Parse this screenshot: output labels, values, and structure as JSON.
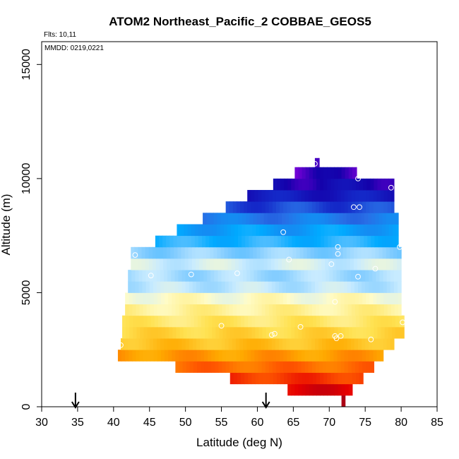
{
  "chart_data": {
    "type": "heatmap",
    "title": "ATOM2 Northeast_Pacific_2 COBBAE_GEOS5",
    "annotations": {
      "flights": "Flts: 10,11",
      "dates": "MMDD: 0219,0221"
    },
    "xlabel": "Latitude (deg N)",
    "ylabel": "Altitude (m)",
    "xlim": [
      30,
      85
    ],
    "ylim": [
      0,
      16000
    ],
    "x_ticks": [
      30,
      35,
      40,
      45,
      50,
      55,
      60,
      65,
      70,
      75,
      80,
      85
    ],
    "y_ticks": [
      0,
      5000,
      10000,
      15000
    ],
    "grid": false,
    "legend": "none",
    "arrow_markers_lat": [
      34.7,
      61.2
    ],
    "curtain_rows": [
      {
        "alt_bottom": 0,
        "alt_top": 500,
        "lat_start": 71.7,
        "lat_end": 72.2,
        "level": 0.97
      },
      {
        "alt_bottom": 500,
        "alt_top": 1000,
        "lat_start": 64.2,
        "lat_end": 73.2,
        "level": 0.93
      },
      {
        "alt_bottom": 1000,
        "alt_top": 1500,
        "lat_start": 56.2,
        "lat_end": 74.7,
        "level": 0.86
      },
      {
        "alt_bottom": 1500,
        "alt_top": 2000,
        "lat_start": 48.6,
        "lat_end": 76.2,
        "level": 0.8
      },
      {
        "alt_bottom": 2000,
        "alt_top": 2500,
        "lat_start": 40.6,
        "lat_end": 77.5,
        "level": 0.74
      },
      {
        "alt_bottom": 2500,
        "alt_top": 3000,
        "lat_start": 41.0,
        "lat_end": 79.0,
        "level": 0.68
      },
      {
        "alt_bottom": 3000,
        "alt_top": 3500,
        "lat_start": 41.2,
        "lat_end": 80.4,
        "level": 0.64
      },
      {
        "alt_bottom": 3500,
        "alt_top": 4000,
        "lat_start": 41.2,
        "lat_end": 80.4,
        "level": 0.6
      },
      {
        "alt_bottom": 4000,
        "alt_top": 4500,
        "lat_start": 41.6,
        "lat_end": 80.0,
        "level": 0.56
      },
      {
        "alt_bottom": 4500,
        "alt_top": 5000,
        "lat_start": 41.6,
        "lat_end": 80.0,
        "level": 0.52
      },
      {
        "alt_bottom": 5000,
        "alt_top": 5500,
        "lat_start": 42.0,
        "lat_end": 80.0,
        "level": 0.44
      },
      {
        "alt_bottom": 5500,
        "alt_top": 6000,
        "lat_start": 42.0,
        "lat_end": 80.0,
        "level": 0.42
      },
      {
        "alt_bottom": 6000,
        "alt_top": 6500,
        "lat_start": 42.4,
        "lat_end": 80.0,
        "level": 0.46
      },
      {
        "alt_bottom": 6500,
        "alt_top": 7000,
        "lat_start": 42.4,
        "lat_end": 80.0,
        "level": 0.4
      },
      {
        "alt_bottom": 7000,
        "alt_top": 7500,
        "lat_start": 45.8,
        "lat_end": 79.6,
        "level": 0.32
      },
      {
        "alt_bottom": 7500,
        "alt_top": 8000,
        "lat_start": 48.8,
        "lat_end": 79.6,
        "level": 0.28
      },
      {
        "alt_bottom": 8000,
        "alt_top": 8500,
        "lat_start": 52.4,
        "lat_end": 79.6,
        "level": 0.22
      },
      {
        "alt_bottom": 8500,
        "alt_top": 9000,
        "lat_start": 55.6,
        "lat_end": 79.0,
        "level": 0.16
      },
      {
        "alt_bottom": 9000,
        "alt_top": 9500,
        "lat_start": 58.6,
        "lat_end": 79.0,
        "level": 0.1
      },
      {
        "alt_bottom": 9500,
        "alt_top": 10000,
        "lat_start": 62.2,
        "lat_end": 79.0,
        "level": 0.06
      },
      {
        "alt_bottom": 10000,
        "alt_top": 10500,
        "lat_start": 65.2,
        "lat_end": 73.8,
        "level": 0.03
      },
      {
        "alt_bottom": 10500,
        "alt_top": 10900,
        "lat_start": 68.0,
        "lat_end": 68.6,
        "level": 0.0
      }
    ],
    "observations": [
      {
        "lat": 68.0,
        "alt": 10650
      },
      {
        "lat": 74.0,
        "alt": 10000
      },
      {
        "lat": 78.6,
        "alt": 9600
      },
      {
        "lat": 73.4,
        "alt": 8750
      },
      {
        "lat": 74.2,
        "alt": 8750
      },
      {
        "lat": 63.6,
        "alt": 7650
      },
      {
        "lat": 43.0,
        "alt": 6650
      },
      {
        "lat": 71.2,
        "alt": 7000
      },
      {
        "lat": 71.2,
        "alt": 6700
      },
      {
        "lat": 64.4,
        "alt": 6450
      },
      {
        "lat": 70.3,
        "alt": 6250
      },
      {
        "lat": 79.8,
        "alt": 7000
      },
      {
        "lat": 76.4,
        "alt": 6050
      },
      {
        "lat": 45.2,
        "alt": 5750
      },
      {
        "lat": 50.8,
        "alt": 5800
      },
      {
        "lat": 57.2,
        "alt": 5850
      },
      {
        "lat": 74.0,
        "alt": 5700
      },
      {
        "lat": 70.8,
        "alt": 4600
      },
      {
        "lat": 55.0,
        "alt": 3550
      },
      {
        "lat": 66.0,
        "alt": 3500
      },
      {
        "lat": 80.2,
        "alt": 3700
      },
      {
        "lat": 62.0,
        "alt": 3150
      },
      {
        "lat": 62.4,
        "alt": 3200
      },
      {
        "lat": 70.8,
        "alt": 3100
      },
      {
        "lat": 71.0,
        "alt": 3000
      },
      {
        "lat": 71.6,
        "alt": 3100
      },
      {
        "lat": 75.8,
        "alt": 2950
      },
      {
        "lat": 41.0,
        "alt": 2700
      }
    ]
  }
}
